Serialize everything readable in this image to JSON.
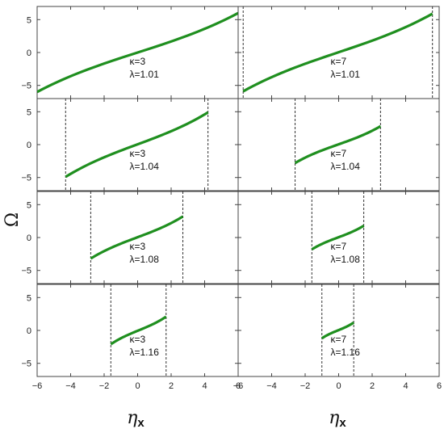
{
  "chart_data": {
    "type": "line",
    "layout": "4x2 panel grid",
    "ylabel": "Ω",
    "xlabel_base": "η",
    "xlabel_sub": "x",
    "xlim": [
      -6,
      6
    ],
    "ylim": [
      -7,
      7
    ],
    "xticks": [
      -6,
      -4,
      -2,
      0,
      2,
      4,
      6
    ],
    "yticks": [
      -5,
      0,
      5
    ],
    "line_color": "#1f8f1f",
    "boundary_color": "#333333",
    "panels": [
      {
        "row": 0,
        "col": 0,
        "kappa_text": "κ=3",
        "lambda_text": "λ=1.01",
        "x_range": [
          -6,
          6
        ],
        "y_range": [
          -6,
          6
        ],
        "bounds": []
      },
      {
        "row": 0,
        "col": 1,
        "kappa_text": "κ=7",
        "lambda_text": "λ=1.01",
        "x_range": [
          -5.7,
          5.6
        ],
        "y_range": [
          -5.9,
          5.9
        ],
        "bounds": [
          -5.7,
          5.6
        ]
      },
      {
        "row": 1,
        "col": 0,
        "kappa_text": "κ=3",
        "lambda_text": "λ=1.04",
        "x_range": [
          -4.3,
          4.2
        ],
        "y_range": [
          -4.9,
          4.9
        ],
        "bounds": [
          -4.3,
          4.2
        ]
      },
      {
        "row": 1,
        "col": 1,
        "kappa_text": "κ=7",
        "lambda_text": "λ=1.04",
        "x_range": [
          -2.6,
          2.5
        ],
        "y_range": [
          -2.8,
          2.8
        ],
        "bounds": [
          -2.6,
          2.5
        ]
      },
      {
        "row": 2,
        "col": 0,
        "kappa_text": "κ=3",
        "lambda_text": "λ=1.08",
        "x_range": [
          -2.8,
          2.7
        ],
        "y_range": [
          -3.2,
          3.2
        ],
        "bounds": [
          -2.8,
          2.7
        ]
      },
      {
        "row": 2,
        "col": 1,
        "kappa_text": "κ=7",
        "lambda_text": "λ=1.08",
        "x_range": [
          -1.6,
          1.5
        ],
        "y_range": [
          -1.8,
          1.8
        ],
        "bounds": [
          -1.6,
          1.5
        ]
      },
      {
        "row": 3,
        "col": 0,
        "kappa_text": "κ=3",
        "lambda_text": "λ=1.16",
        "x_range": [
          -1.6,
          1.7
        ],
        "y_range": [
          -2.1,
          2.1
        ],
        "bounds": [
          -1.6,
          1.7
        ]
      },
      {
        "row": 3,
        "col": 1,
        "kappa_text": "κ=7",
        "lambda_text": "λ=1.16",
        "x_range": [
          -1.0,
          0.9
        ],
        "y_range": [
          -1.2,
          1.2
        ],
        "bounds": [
          -1.0,
          0.9
        ]
      }
    ]
  }
}
